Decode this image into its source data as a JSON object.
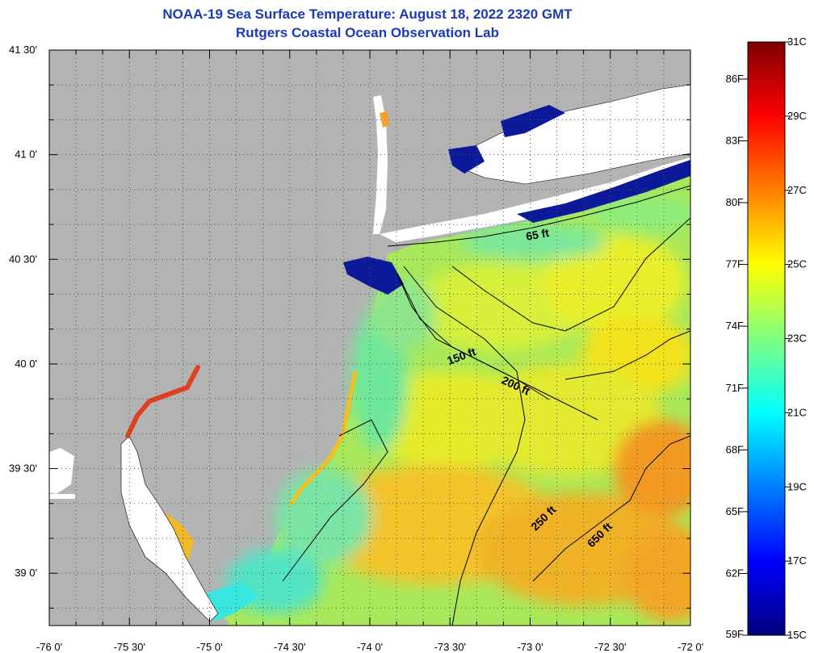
{
  "title": {
    "line1": "NOAA-19 Sea Surface Temperature:  August 18, 2022 2320 GMT",
    "line2": "Rutgers Coastal Ocean Observation Lab"
  },
  "map": {
    "lon_range": [
      -76.0,
      -72.0
    ],
    "lat_range": [
      38.75,
      41.5
    ],
    "lon_ticks": [
      "-76 0'",
      "-75 30'",
      "-75 0'",
      "-74 30'",
      "-74 0'",
      "-73 30'",
      "-73 0'",
      "-72 30'",
      "-72 0'"
    ],
    "lon_tick_values": [
      -76.0,
      -75.5,
      -75.0,
      -74.5,
      -74.0,
      -73.5,
      -73.0,
      -72.5,
      -72.0
    ],
    "lat_ticks": [
      "41 30'",
      "41 0'",
      "40 30'",
      "40 0'",
      "39 30'",
      "39 0'"
    ],
    "lat_tick_values": [
      41.5,
      41.0,
      40.5,
      40.0,
      39.5,
      39.0
    ],
    "grid": "dotted",
    "land_color": "#b3b3b3",
    "cloud_mask_color": "#ffffff",
    "contours": [
      {
        "label": "65 ft",
        "lon": -72.95,
        "lat": 40.6
      },
      {
        "label": "150 ft",
        "lon": -73.42,
        "lat": 40.02
      },
      {
        "label": "200 ft",
        "lon": -73.1,
        "lat": 39.88
      },
      {
        "label": "250 ft",
        "lon": -72.9,
        "lat": 39.25
      },
      {
        "label": "650 ft",
        "lon": -72.55,
        "lat": 39.17
      }
    ]
  },
  "colorbar": {
    "celsius_labels": [
      "31C",
      "29C",
      "27C",
      "25C",
      "23C",
      "21C",
      "19C",
      "17C",
      "15C"
    ],
    "celsius_values": [
      31,
      29,
      27,
      25,
      23,
      21,
      19,
      17,
      15
    ],
    "fahrenheit_labels": [
      "86F",
      "83F",
      "80F",
      "77F",
      "74F",
      "71F",
      "68F",
      "65F",
      "62F",
      "59F"
    ],
    "fahrenheit_values": [
      86,
      83,
      80,
      77,
      74,
      71,
      68,
      65,
      62,
      59
    ],
    "range_c": [
      15,
      31
    ],
    "colormap": [
      "#00007f",
      "#0000ff",
      "#007fff",
      "#00ffff",
      "#7fff7f",
      "#ffff00",
      "#ff7f00",
      "#ff0000",
      "#7f0000"
    ]
  }
}
